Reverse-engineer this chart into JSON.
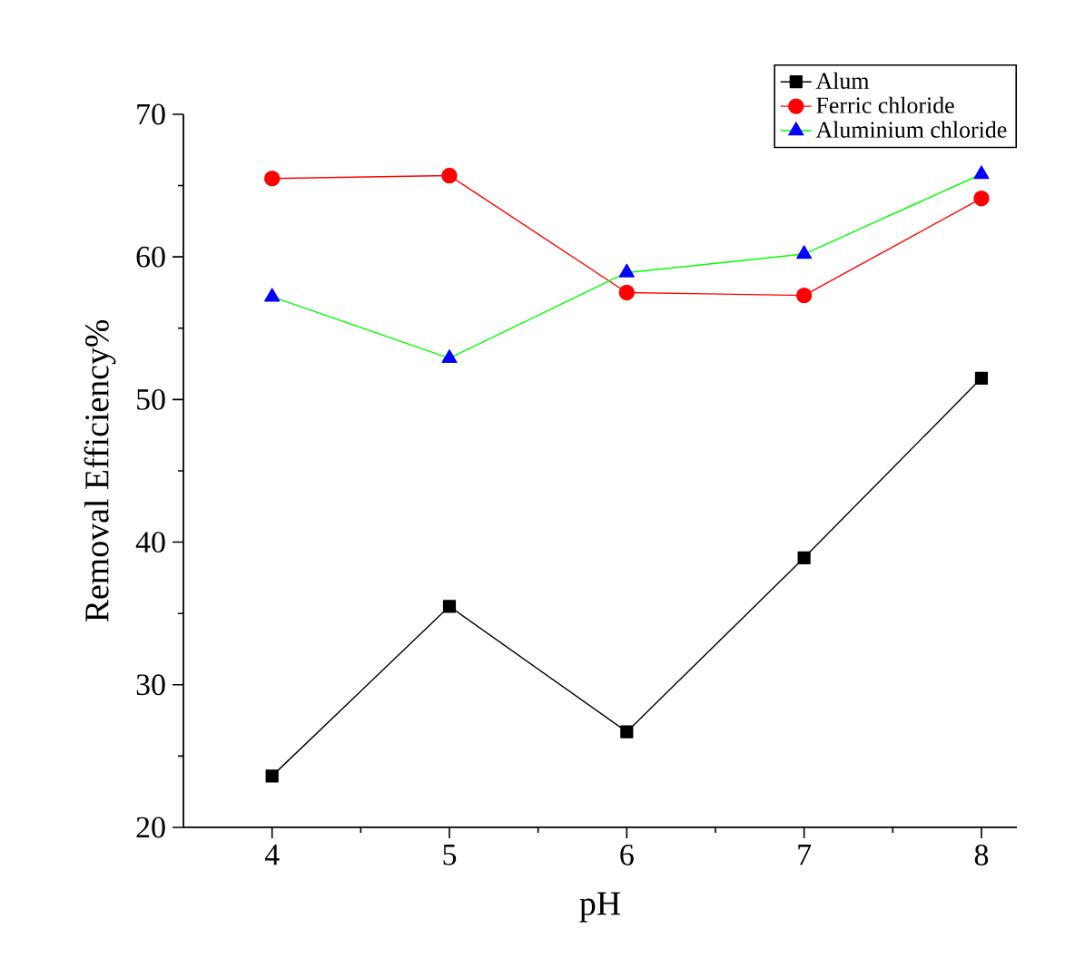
{
  "chart_data": {
    "type": "line",
    "xlabel": "pH",
    "ylabel": "Removal Efficiency%",
    "x": [
      4,
      5,
      6,
      7,
      8
    ],
    "xlim": [
      3.5,
      8.2
    ],
    "ylim": [
      20,
      70
    ],
    "xticks": [
      4,
      5,
      6,
      7,
      8
    ],
    "yticks": [
      20,
      30,
      40,
      50,
      60,
      70
    ],
    "legend": "top right",
    "grid": false,
    "series": [
      {
        "name": "Alum",
        "color": "#000000",
        "marker": "square",
        "values": [
          23.6,
          35.5,
          26.7,
          38.9,
          51.5
        ]
      },
      {
        "name": "Ferric chloride",
        "color": "#ff0000",
        "marker": "circle",
        "values": [
          65.5,
          65.7,
          57.5,
          57.3,
          64.1
        ]
      },
      {
        "name": "Aluminium chloride",
        "color": "#00ff00",
        "colors": [
          "#0000ff",
          "#0000ff",
          "#0000ff",
          "#0000ff",
          "#0000ff"
        ],
        "marker": "triangle",
        "values": [
          57.2,
          52.9,
          58.9,
          60.2,
          65.8
        ]
      }
    ]
  }
}
